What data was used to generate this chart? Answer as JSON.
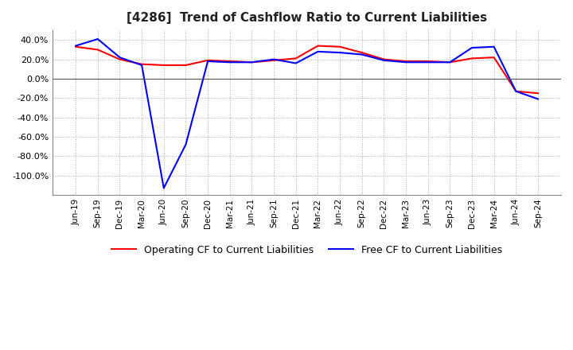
{
  "title": "[4286]  Trend of Cashflow Ratio to Current Liabilities",
  "x_labels": [
    "Jun-19",
    "Sep-19",
    "Dec-19",
    "Mar-20",
    "Jun-20",
    "Sep-20",
    "Dec-20",
    "Mar-21",
    "Jun-21",
    "Sep-21",
    "Dec-21",
    "Mar-22",
    "Jun-22",
    "Sep-22",
    "Dec-22",
    "Mar-23",
    "Jun-23",
    "Sep-23",
    "Dec-23",
    "Mar-24",
    "Jun-24",
    "Sep-24"
  ],
  "operating_cf": [
    33.0,
    30.0,
    20.0,
    15.0,
    14.0,
    14.0,
    19.0,
    18.0,
    17.0,
    19.0,
    21.0,
    34.0,
    33.0,
    27.0,
    20.0,
    18.0,
    18.0,
    17.0,
    21.0,
    22.0,
    -13.0,
    -15.0
  ],
  "free_cf": [
    34.0,
    41.0,
    22.0,
    14.0,
    -113.0,
    -68.0,
    18.0,
    17.0,
    17.0,
    20.0,
    16.0,
    28.0,
    27.0,
    25.0,
    19.0,
    17.0,
    17.0,
    17.0,
    32.0,
    33.0,
    -13.0,
    -21.0
  ],
  "operating_color": "#ff0000",
  "free_color": "#0000ff",
  "ylim": [
    -120,
    50
  ],
  "yticks": [
    40,
    20,
    0,
    -20,
    -40,
    -60,
    -80,
    -100
  ],
  "background_color": "#ffffff",
  "grid_color": "#aaaaaa",
  "zero_line_color": "#555555",
  "legend_labels": [
    "Operating CF to Current Liabilities",
    "Free CF to Current Liabilities"
  ]
}
